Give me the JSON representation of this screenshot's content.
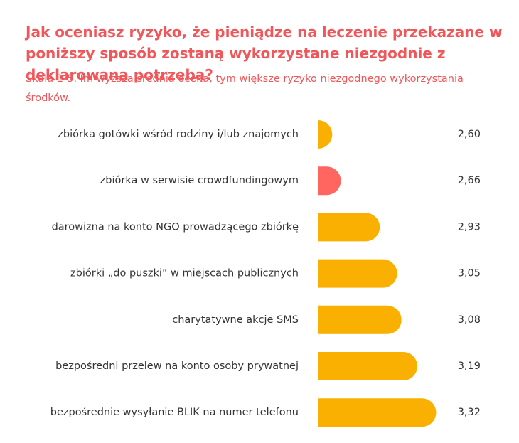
{
  "chart_data": {
    "type": "hbar",
    "title": "Jak oceniasz ryzyko, że pieniądze na leczenie przekazane w poniższy sposób zostaną wykorzystane niezgodnie z deklarowaną potrzebą?",
    "subtitle": "Skala 1-5. Im wyższa średnia ocena, tym większe ryzyko niezgodnego wykorzystania środków.",
    "categories": [
      "zbiórka gotówki wśród rodziny i/lub znajomych",
      "zbiórka w serwisie crowdfundingowym",
      "darowizna na konto NGO prowadzącego zbiórkę",
      "zbiórki „do puszki” w miejscach publicznych",
      "charytatywne akcje SMS",
      "bezpośredni przelew na konto osoby prywatnej",
      "bezpośrednie wysyłanie BLIK na numer telefonu"
    ],
    "values": [
      2.6,
      2.66,
      2.93,
      3.05,
      3.08,
      3.19,
      3.32
    ],
    "value_labels": [
      "2,60",
      "2,66",
      "2,93",
      "3,05",
      "3,08",
      "3,19",
      "3,32"
    ],
    "colors": [
      "#f9b000",
      "#ff6660",
      "#f9b000",
      "#f9b000",
      "#f9b000",
      "#f9b000",
      "#f9b000"
    ],
    "xlim": [
      2.5,
      3.5
    ]
  }
}
